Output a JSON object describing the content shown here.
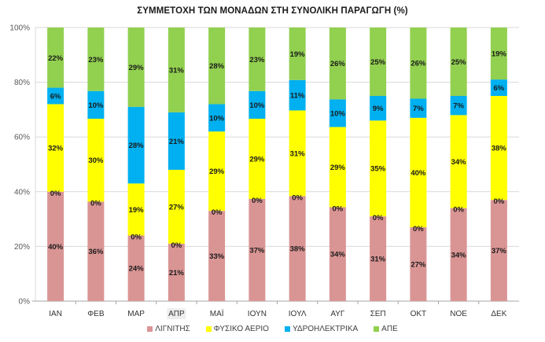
{
  "chart_data": {
    "type": "bar",
    "stacked": "percent",
    "title": "ΣΥΜΜΕΤΟΧΗ ΤΩΝ ΜΟΝΑΔΩΝ ΣΤΗ ΣΥΝΟΛΙΚΗ ΠΑΡΑΓΩΓΗ (%)",
    "xlabel": "",
    "ylabel": "",
    "ylim": [
      0,
      100
    ],
    "y_ticks": [
      "0%",
      "20%",
      "40%",
      "60%",
      "80%",
      "100%"
    ],
    "grid": true,
    "legend_position": "bottom",
    "highlighted_category": "ΑΠΡ",
    "categories": [
      "ΙΑΝ",
      "ΦΕΒ",
      "ΜΑΡ",
      "ΑΠΡ",
      "ΜΑΪ",
      "ΙΟΥΝ",
      "ΙΟΥΛ",
      "ΑΥΓ",
      "ΣΕΠ",
      "ΟΚΤ",
      "ΝΟΕ",
      "ΔΕΚ"
    ],
    "series": [
      {
        "name": "ΛΙΓΝΙΤΗΣ",
        "color": "#D99594",
        "values": [
          40,
          36,
          24,
          21,
          33,
          37,
          38,
          34,
          31,
          27,
          34,
          37
        ]
      },
      {
        "name": "ΦΥΣΙΚΟ ΑΕΡΙΟ",
        "color": "#FFFF00",
        "values": [
          32,
          30,
          19,
          27,
          29,
          29,
          31,
          29,
          35,
          40,
          34,
          38
        ]
      },
      {
        "name": "ΥΔΡΟΗΛΕΚΤΡΙΚΑ",
        "color": "#00B0F0",
        "values": [
          6,
          10,
          28,
          21,
          10,
          10,
          11,
          10,
          9,
          7,
          7,
          6
        ]
      },
      {
        "name": "ΑΠΕ",
        "color": "#92D050",
        "values": [
          22,
          23,
          29,
          31,
          28,
          23,
          19,
          26,
          25,
          26,
          25,
          19
        ]
      }
    ],
    "zero_labels": {
      "text": "0%",
      "position": "lignite-gas boundary",
      "values": [
        0,
        0,
        0,
        0,
        0,
        0,
        0,
        0,
        0,
        0,
        0,
        0
      ]
    }
  }
}
